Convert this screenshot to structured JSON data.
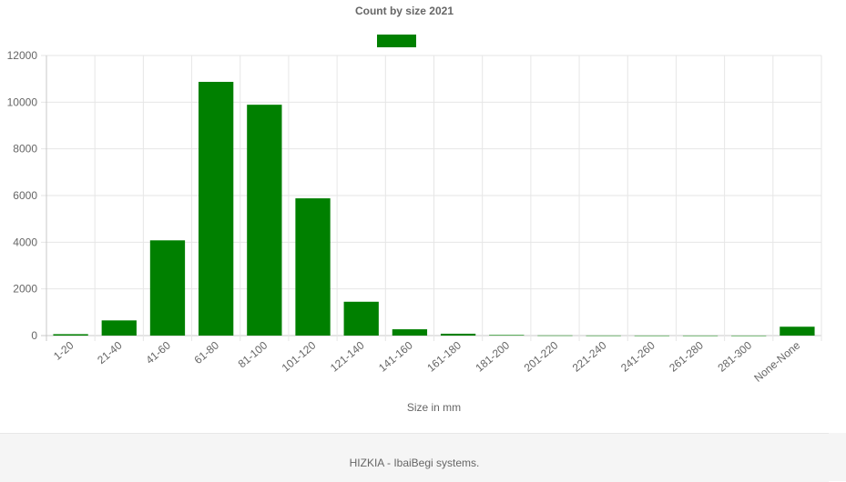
{
  "chart_data": {
    "type": "bar",
    "title": "Count by size 2021",
    "xlabel": "Size in mm",
    "ylabel": "",
    "categories": [
      "1-20",
      "21-40",
      "41-60",
      "61-80",
      "81-100",
      "101-120",
      "121-140",
      "141-160",
      "161-180",
      "181-200",
      "201-220",
      "221-240",
      "241-260",
      "261-280",
      "281-300",
      "None-None"
    ],
    "series": [
      {
        "values": [
          60,
          650,
          4080,
          10870,
          9890,
          5880,
          1450,
          270,
          80,
          25,
          8,
          4,
          2,
          2,
          1,
          380
        ]
      }
    ],
    "ylim": [
      0,
      12000
    ],
    "yticks": [
      0,
      2000,
      4000,
      6000,
      8000,
      10000,
      12000
    ],
    "grid": true,
    "legend": "top-center",
    "colors": {
      "bar": "#008000",
      "grid": "#e6e6e6",
      "axis": "#c8c8c8",
      "text": "#666666"
    }
  },
  "footer": {
    "text": "HIZKIA - IbaiBegi systems."
  }
}
